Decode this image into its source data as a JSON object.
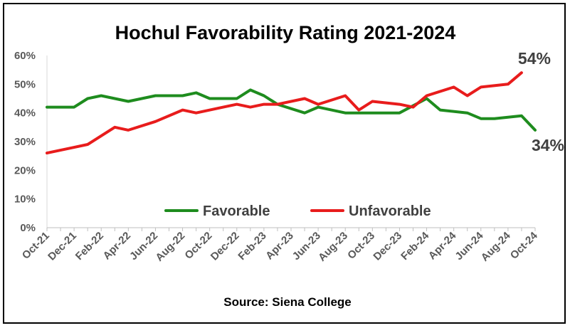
{
  "chart_data": {
    "type": "line",
    "title": "Hochul Favorability Rating 2021-2024",
    "source": "Source: Siena College",
    "ylim": [
      0,
      60
    ],
    "yticks": [
      0,
      10,
      20,
      30,
      40,
      50,
      60
    ],
    "ytick_format": "percent",
    "xlim": [
      "2021-10",
      "2024-10"
    ],
    "xtick_labels": [
      "Oct-21",
      "Dec-21",
      "Feb-22",
      "Apr-22",
      "Jun-22",
      "Aug-22",
      "Oct-22",
      "Dec-22",
      "Feb-23",
      "Apr-23",
      "Jun-23",
      "Aug-23",
      "Oct-23",
      "Dec-23",
      "Feb-24",
      "Apr-24",
      "Jun-24",
      "Aug-24",
      "Oct-24"
    ],
    "legend_position": "inside-bottom-center",
    "grid": false,
    "series": [
      {
        "name": "Favorable",
        "color": "#1e8c1e",
        "end_label": "34%",
        "points": [
          [
            "2021-10",
            42
          ],
          [
            "2021-12",
            42
          ],
          [
            "2022-01",
            45
          ],
          [
            "2022-02",
            46
          ],
          [
            "2022-04",
            44
          ],
          [
            "2022-06",
            46
          ],
          [
            "2022-08",
            46
          ],
          [
            "2022-09",
            47
          ],
          [
            "2022-10",
            45
          ],
          [
            "2022-12",
            45
          ],
          [
            "2023-01",
            48
          ],
          [
            "2023-02",
            46
          ],
          [
            "2023-03",
            43
          ],
          [
            "2023-05",
            40
          ],
          [
            "2023-06",
            42
          ],
          [
            "2023-08",
            40
          ],
          [
            "2023-10",
            40
          ],
          [
            "2023-12",
            40
          ],
          [
            "2024-02",
            45
          ],
          [
            "2024-03",
            41
          ],
          [
            "2024-05",
            40
          ],
          [
            "2024-06",
            38
          ],
          [
            "2024-07",
            38
          ],
          [
            "2024-09",
            39
          ],
          [
            "2024-10",
            34
          ]
        ]
      },
      {
        "name": "Unfavorable",
        "color": "#e81c1c",
        "end_label": "54%",
        "points": [
          [
            "2021-10",
            26
          ],
          [
            "2021-12",
            28
          ],
          [
            "2022-01",
            29
          ],
          [
            "2022-03",
            35
          ],
          [
            "2022-04",
            34
          ],
          [
            "2022-06",
            37
          ],
          [
            "2022-08",
            41
          ],
          [
            "2022-09",
            40
          ],
          [
            "2022-11",
            42
          ],
          [
            "2022-12",
            43
          ],
          [
            "2023-01",
            42
          ],
          [
            "2023-02",
            43
          ],
          [
            "2023-03",
            43
          ],
          [
            "2023-05",
            45
          ],
          [
            "2023-06",
            43
          ],
          [
            "2023-08",
            46
          ],
          [
            "2023-09",
            41
          ],
          [
            "2023-10",
            44
          ],
          [
            "2023-12",
            43
          ],
          [
            "2024-01",
            42
          ],
          [
            "2024-02",
            46
          ],
          [
            "2024-04",
            49
          ],
          [
            "2024-05",
            46
          ],
          [
            "2024-06",
            49
          ],
          [
            "2024-08",
            50
          ],
          [
            "2024-09",
            54
          ]
        ]
      }
    ]
  }
}
